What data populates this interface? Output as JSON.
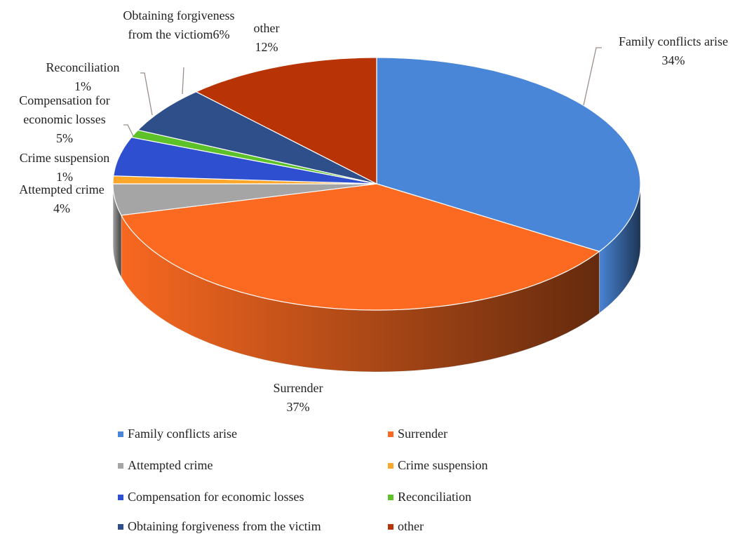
{
  "chart_data": {
    "type": "pie",
    "categories": [
      "Family conflicts arise",
      "Surrender",
      "Attempted crime",
      "Crime suspension",
      "Compensation for economic losses",
      "Reconciliation",
      "Obtaining forgiveness from the victim",
      "other"
    ],
    "values": [
      34,
      37,
      4,
      1,
      5,
      1,
      6,
      12
    ],
    "value_labels": [
      "34%",
      "37%",
      "4%",
      "1%",
      "5%",
      "1%",
      "6%",
      "12%"
    ],
    "data_label_names": [
      "Family conflicts arise",
      "Surrender",
      "Attempted crime",
      "Crime suspension",
      "Compensation for economic losses",
      "Reconciliation",
      "Obtaining forgiveness from the victiom",
      "other"
    ],
    "colors": [
      "#4a86d8",
      "#fc6a21",
      "#a5a5a5",
      "#fca62a",
      "#2f4fd1",
      "#5dc22a",
      "#2e4f8a",
      "#b83305"
    ]
  }
}
